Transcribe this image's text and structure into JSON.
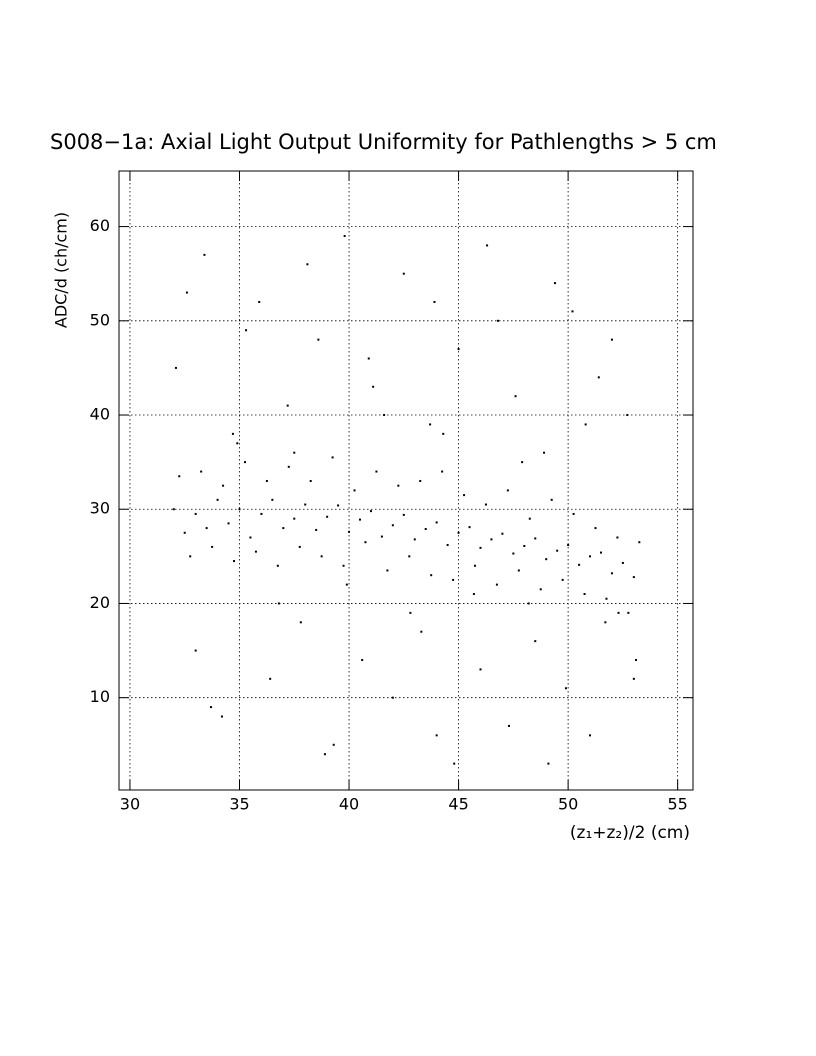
{
  "chart_data": {
    "type": "scatter",
    "title": "S008−1a: Axial Light Output Uniformity for Pathlengths > 5 cm",
    "x_label": "(z₁+z₂)/2 (cm)",
    "y_label": "ADC/d (ch/cm)",
    "xlim": [
      29.5,
      55.7
    ],
    "ylim": [
      0.2,
      65.9
    ],
    "xticks": [
      30,
      35,
      40,
      45,
      50,
      55
    ],
    "yticks": [
      10,
      20,
      30,
      40,
      50,
      60
    ],
    "grid": true,
    "color": "#000000",
    "x": [
      32.0,
      32.5,
      33.0,
      33.5,
      34.0,
      34.5,
      35.0,
      35.5,
      36.0,
      36.5,
      37.0,
      37.5,
      38.0,
      38.5,
      39.0,
      39.5,
      40.0,
      40.5,
      41.0,
      41.5,
      42.0,
      42.5,
      43.0,
      43.5,
      44.0,
      44.5,
      45.0,
      45.5,
      46.0,
      46.5,
      47.0,
      47.5,
      48.0,
      48.5,
      49.0,
      49.5,
      50.0,
      50.5,
      51.0,
      51.5,
      52.0,
      52.5,
      53.0,
      32.25,
      32.75,
      33.25,
      33.75,
      34.25,
      34.75,
      35.25,
      35.75,
      36.25,
      36.75,
      37.25,
      37.75,
      38.25,
      38.75,
      39.25,
      39.75,
      40.25,
      40.75,
      41.25,
      41.75,
      42.25,
      42.75,
      43.25,
      43.75,
      44.25,
      44.75,
      45.25,
      45.75,
      46.25,
      46.75,
      47.25,
      47.75,
      48.25,
      48.75,
      49.25,
      49.75,
      50.25,
      50.75,
      51.25,
      51.75,
      52.25,
      52.75,
      53.25,
      32.1,
      33.4,
      34.7,
      35.9,
      37.2,
      38.6,
      39.8,
      41.1,
      42.5,
      43.7,
      45.0,
      46.3,
      47.6,
      48.9,
      50.2,
      51.4,
      52.7,
      33.0,
      34.2,
      36.4,
      37.8,
      39.3,
      40.6,
      42.0,
      43.3,
      44.8,
      46.0,
      47.3,
      48.5,
      49.9,
      51.0,
      52.3,
      53.1,
      32.6,
      35.3,
      38.1,
      40.9,
      43.9,
      46.8,
      49.4,
      52.0,
      34.9,
      37.5,
      41.6,
      44.3,
      47.9,
      50.8,
      36.8,
      39.9,
      42.8,
      45.7,
      48.2,
      51.7,
      33.7,
      38.9,
      44.0,
      49.1,
      53.0
    ],
    "values": [
      30,
      27.5,
      29.5,
      28,
      31,
      28.5,
      30,
      27,
      29.5,
      31,
      28,
      29,
      30.5,
      27.8,
      29.2,
      30.4,
      27.6,
      28.9,
      29.8,
      27.1,
      28.3,
      29.4,
      26.8,
      27.9,
      28.6,
      26.2,
      27.5,
      28.1,
      25.9,
      26.8,
      27.4,
      25.3,
      26.1,
      26.9,
      24.7,
      25.6,
      26.2,
      24.1,
      25.0,
      25.4,
      23.2,
      24.3,
      22.8,
      33.5,
      25,
      34,
      26,
      32.5,
      24.5,
      35,
      25.5,
      33,
      24,
      34.5,
      26,
      33,
      25,
      35.5,
      24,
      32,
      26.5,
      34,
      23.5,
      32.5,
      25,
      33,
      23,
      34,
      22.5,
      31.5,
      24,
      30.5,
      22,
      32,
      23.5,
      29,
      21.5,
      31,
      22.5,
      29.5,
      21,
      28,
      20.5,
      27,
      19,
      26.5,
      45,
      57,
      38,
      52,
      41,
      48,
      59,
      43,
      55,
      39,
      47,
      58,
      42,
      36,
      51,
      44,
      40,
      15,
      8,
      12,
      18,
      5,
      14,
      10,
      17,
      3,
      13,
      7,
      16,
      11,
      6,
      19,
      14,
      53,
      49,
      56,
      46,
      52,
      50,
      54,
      48,
      37,
      36,
      40,
      38,
      35,
      39,
      20,
      22,
      19,
      21,
      20,
      18,
      9,
      4,
      6,
      3,
      12
    ]
  }
}
